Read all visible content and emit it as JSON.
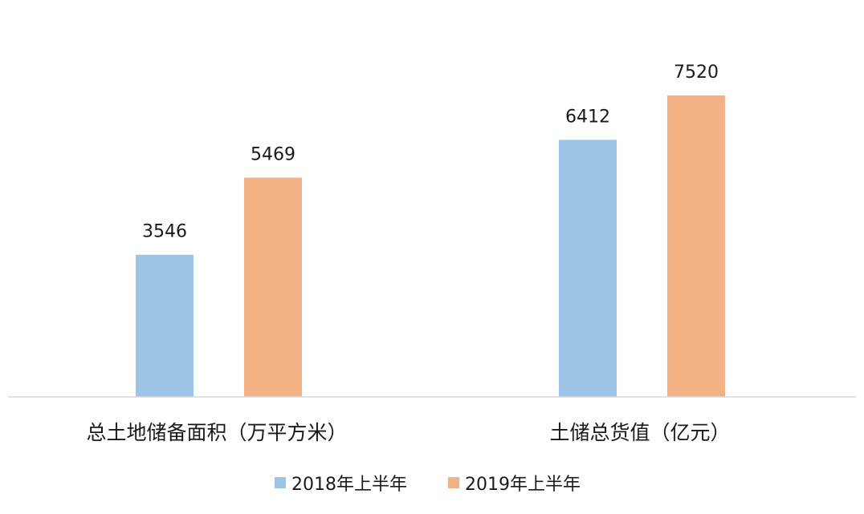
{
  "chart_data": {
    "type": "bar",
    "categories": [
      "总土地储备面积（万平方米）",
      "土储总货值（亿元）"
    ],
    "series": [
      {
        "name": "2018年上半年",
        "values": [
          3546,
          6412
        ]
      },
      {
        "name": "2019年上半年",
        "values": [
          5469,
          7520
        ]
      }
    ],
    "title": "",
    "xlabel": "",
    "ylabel": "",
    "ylim": [
      0,
      8000
    ],
    "grid": false,
    "legend_position": "bottom",
    "colors": [
      "#9dc3e6",
      "#f4b183"
    ]
  }
}
